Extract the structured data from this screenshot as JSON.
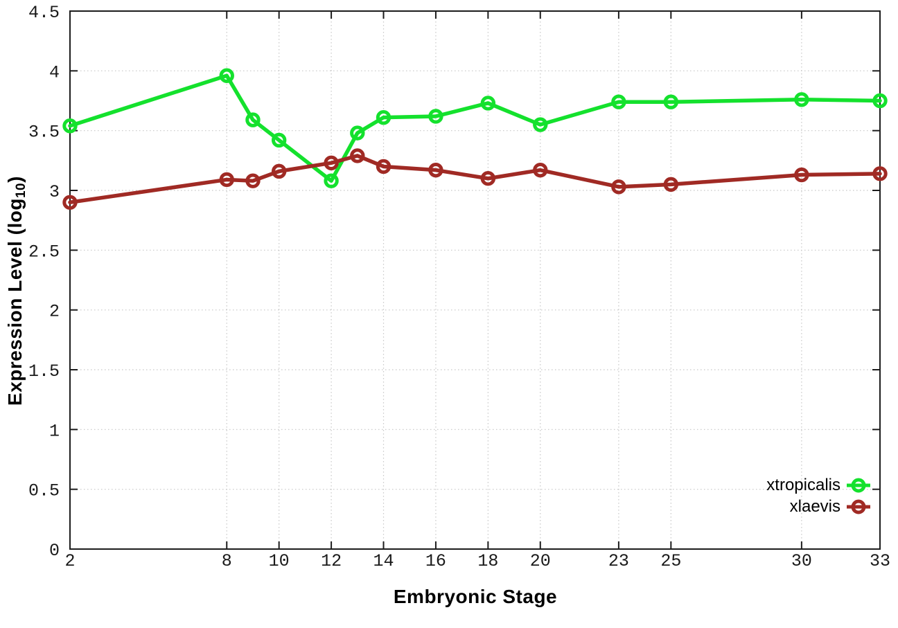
{
  "chart_data": {
    "type": "line",
    "title": "",
    "xlabel": "Embryonic Stage",
    "ylabel": "Expression Level (log10)",
    "ylabel_parts": {
      "prefix": "Expression Level (log",
      "subscript": "10",
      "suffix": ")"
    },
    "xlim": [
      2,
      33
    ],
    "ylim": [
      0,
      4.5
    ],
    "grid": true,
    "grid_style": "dotted",
    "legend_position": "inside-bottom-right",
    "x": [
      2,
      8,
      9,
      10,
      12,
      13,
      14,
      16,
      18,
      20,
      23,
      25,
      30,
      33
    ],
    "xticks": {
      "values": [
        2,
        8,
        10,
        12,
        14,
        16,
        18,
        20,
        23,
        25,
        30,
        33
      ],
      "labels": [
        "2",
        "8",
        "10",
        "12",
        "14",
        "16",
        "18",
        "20",
        "23",
        "25",
        "30",
        "33"
      ]
    },
    "yticks": {
      "values": [
        0,
        0.5,
        1,
        1.5,
        2,
        2.5,
        3,
        3.5,
        4,
        4.5
      ],
      "labels": [
        "0",
        "0.5",
        "1",
        "1.5",
        "2",
        "2.5",
        "3",
        "3.5",
        "4",
        "4.5"
      ]
    },
    "series": [
      {
        "name": "xtropicalis",
        "color": "#14e12d",
        "marker": "open-circle",
        "values": [
          3.54,
          3.96,
          3.59,
          3.42,
          3.08,
          3.48,
          3.61,
          3.62,
          3.73,
          3.55,
          3.74,
          3.74,
          3.76,
          3.75
        ]
      },
      {
        "name": "xlaevis",
        "color": "#a02a24",
        "marker": "open-circle",
        "values": [
          2.9,
          3.09,
          3.08,
          3.16,
          3.23,
          3.29,
          3.2,
          3.17,
          3.1,
          3.17,
          3.03,
          3.05,
          3.13,
          3.14
        ]
      }
    ]
  },
  "colors": {
    "background": "#ffffff",
    "frame": "#1c1c1c",
    "grid": "#c6c6c6",
    "tick_label": "#1a1a1a",
    "axis_label": "#000000",
    "legend_text": "#000000"
  }
}
